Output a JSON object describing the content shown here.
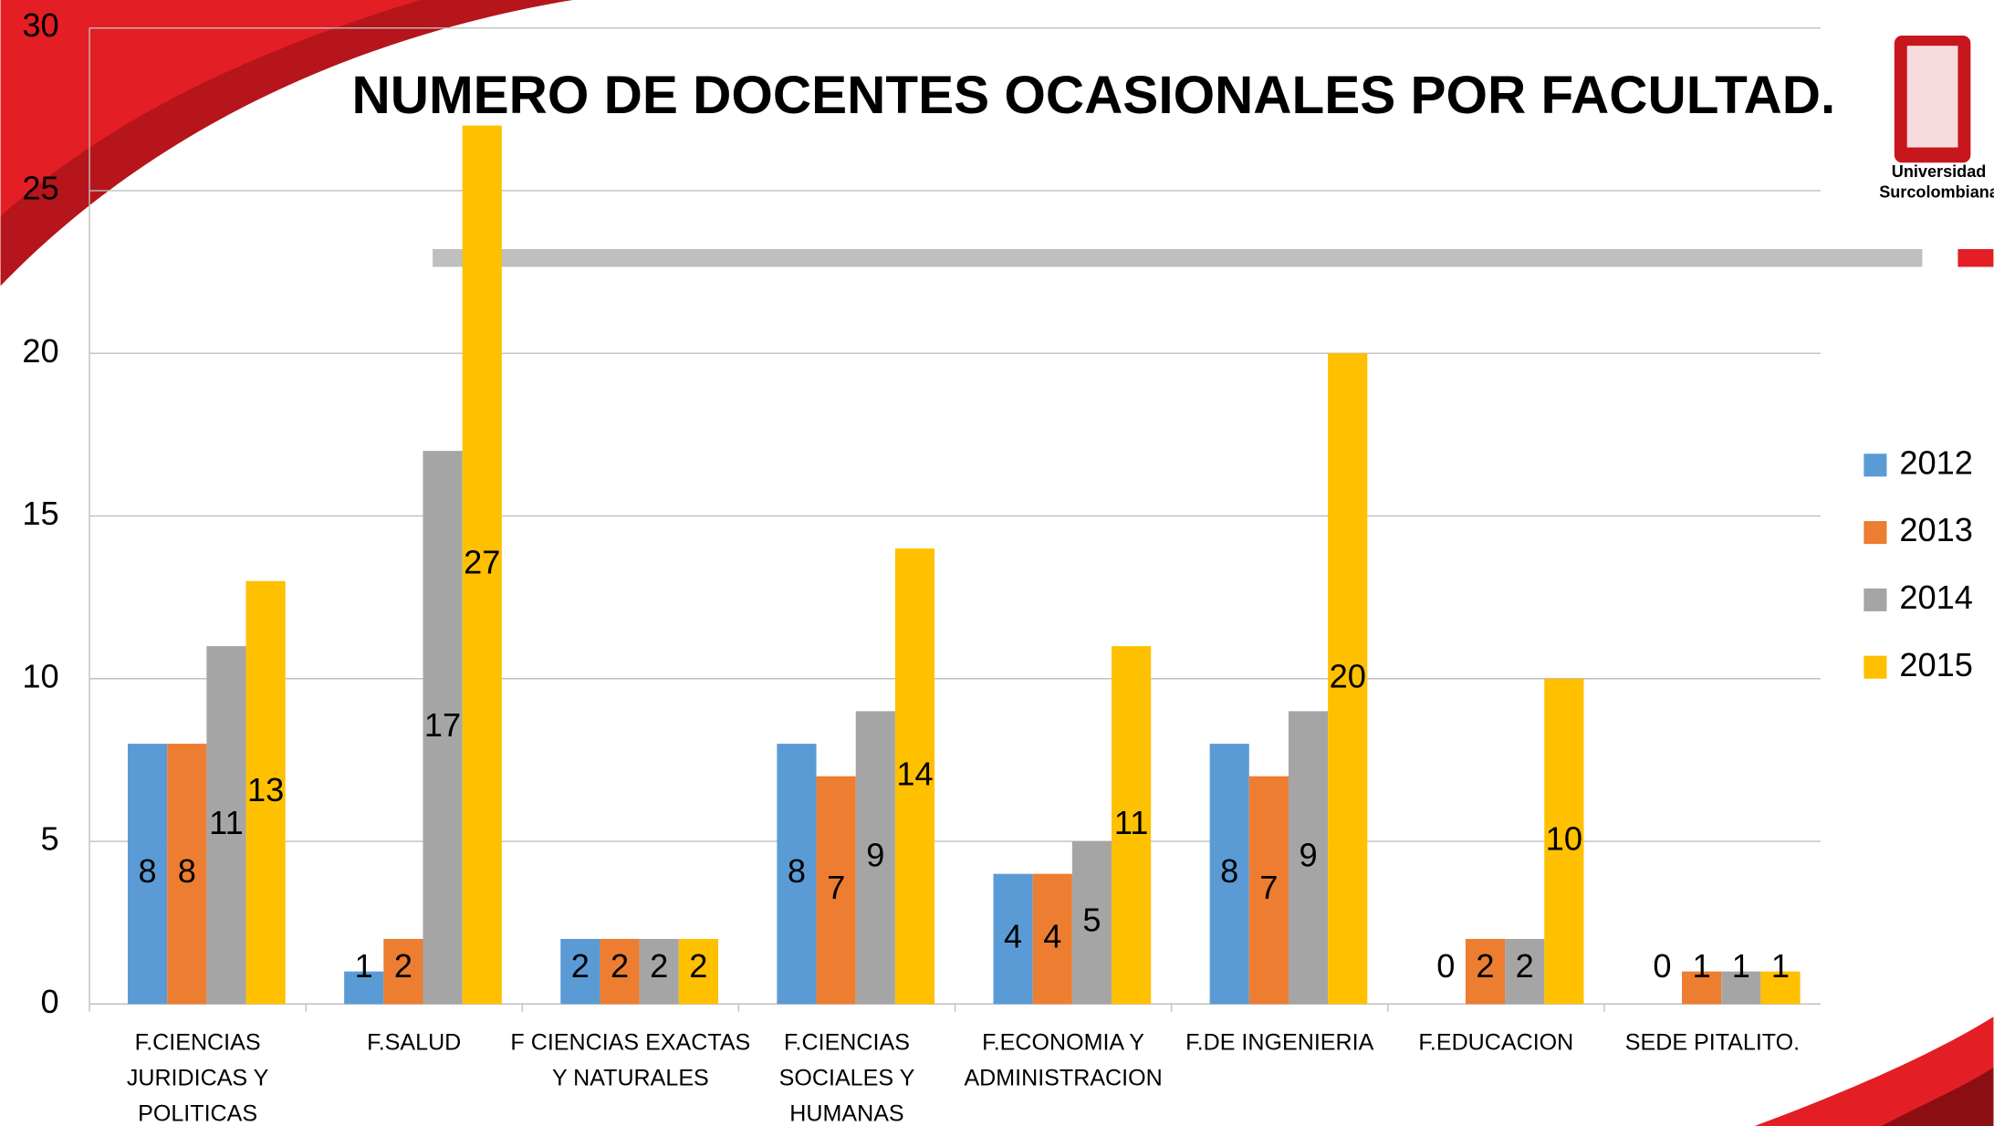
{
  "chart_data": {
    "type": "bar",
    "title": "NUMERO DE DOCENTES OCASIONALES POR FACULTAD.",
    "logo": [
      "Universidad",
      "Surcolombiana"
    ],
    "categories": [
      "F.CIENCIAS JURIDICAS Y POLITICAS",
      "F.SALUD",
      "F CIENCIAS EXACTAS Y NATURALES",
      "F.CIENCIAS SOCIALES Y HUMANAS",
      "F.ECONOMIA Y ADMINISTRACION",
      "F.DE INGENIERIA",
      "F.EDUCACION",
      "SEDE PITALITO."
    ],
    "series": [
      {
        "name": "2012",
        "color": "#5b9bd5",
        "values": [
          8,
          1,
          2,
          8,
          4,
          8,
          0,
          0
        ]
      },
      {
        "name": "2013",
        "color": "#ed7d31",
        "values": [
          8,
          2,
          2,
          7,
          4,
          7,
          2,
          1
        ]
      },
      {
        "name": "2014",
        "color": "#a5a5a5",
        "values": [
          11,
          17,
          2,
          9,
          5,
          9,
          2,
          1
        ]
      },
      {
        "name": "2015",
        "color": "#ffc000",
        "values": [
          13,
          27,
          2,
          14,
          11,
          20,
          10,
          1
        ]
      }
    ],
    "ylim": [
      0,
      30
    ],
    "yticks": [
      0,
      5,
      10,
      15,
      20,
      25,
      30
    ],
    "grid": true,
    "legend": "right"
  }
}
